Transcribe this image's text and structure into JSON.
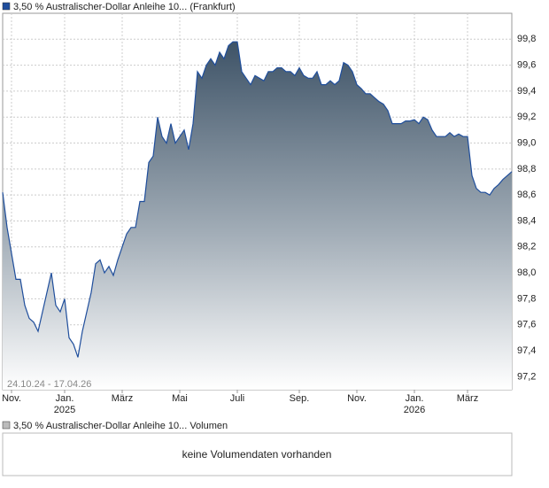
{
  "chart_data": {
    "type": "area",
    "title": "3,50 % Australischer-Dollar Anleihe 10... (Frankfurt)",
    "date_range": "24.10.24 - 17.04.26",
    "color": "#1f4e9c",
    "grid": true,
    "values": [
      98.62,
      98.35,
      98.15,
      97.95,
      97.95,
      97.75,
      97.65,
      97.62,
      97.55,
      97.7,
      97.85,
      98.0,
      97.75,
      97.7,
      97.8,
      97.5,
      97.45,
      97.35,
      97.55,
      97.7,
      97.85,
      98.07,
      98.1,
      98.0,
      98.05,
      97.98,
      98.1,
      98.2,
      98.3,
      98.35,
      98.35,
      98.55,
      98.55,
      98.85,
      98.9,
      99.2,
      99.05,
      99.0,
      99.15,
      99.0,
      99.05,
      99.1,
      98.95,
      99.15,
      99.55,
      99.5,
      99.6,
      99.65,
      99.6,
      99.7,
      99.65,
      99.75,
      99.78,
      99.78,
      99.55,
      99.5,
      99.45,
      99.52,
      99.5,
      99.48,
      99.55,
      99.55,
      99.58,
      99.58,
      99.55,
      99.55,
      99.52,
      99.58,
      99.52,
      99.5,
      99.5,
      99.55,
      99.45,
      99.45,
      99.48,
      99.45,
      99.48,
      99.62,
      99.6,
      99.55,
      99.45,
      99.42,
      99.38,
      99.38,
      99.35,
      99.32,
      99.3,
      99.25,
      99.15,
      99.15,
      99.15,
      99.17,
      99.17,
      99.18,
      99.15,
      99.2,
      99.18,
      99.1,
      99.05,
      99.05,
      99.05,
      99.08,
      99.05,
      99.07,
      99.05,
      99.05,
      98.75,
      98.65,
      98.62,
      98.62,
      98.6,
      98.65,
      98.68,
      98.72,
      98.75,
      98.78
    ],
    "ylim": [
      97.1,
      100.0
    ],
    "yticks": [
      {
        "value": 97.2,
        "label": "97,2"
      },
      {
        "value": 97.4,
        "label": "97,4"
      },
      {
        "value": 97.6,
        "label": "97,6"
      },
      {
        "value": 97.8,
        "label": "97,8"
      },
      {
        "value": 98.0,
        "label": "98,0"
      },
      {
        "value": 98.2,
        "label": "98,2"
      },
      {
        "value": 98.4,
        "label": "98,4"
      },
      {
        "value": 98.6,
        "label": "98,6"
      },
      {
        "value": 98.8,
        "label": "98,8"
      },
      {
        "value": 99.0,
        "label": "99,0"
      },
      {
        "value": 99.2,
        "label": "99,2"
      },
      {
        "value": 99.4,
        "label": "99,4"
      },
      {
        "value": 99.6,
        "label": "99,6"
      },
      {
        "value": 99.8,
        "label": "99,8"
      }
    ],
    "xlim": [
      0,
      115
    ],
    "xticks": [
      {
        "value": 2,
        "label": "Nov."
      },
      {
        "value": 14,
        "label": "Jan."
      },
      {
        "value": 27,
        "label": "März"
      },
      {
        "value": 40,
        "label": "Mai"
      },
      {
        "value": 53,
        "label": "Juli"
      },
      {
        "value": 67,
        "label": "Sep."
      },
      {
        "value": 80,
        "label": "Nov."
      },
      {
        "value": 93,
        "label": "Jan."
      },
      {
        "value": 105,
        "label": "März"
      }
    ],
    "x_year_labels": [
      {
        "value": 14,
        "label": "2025"
      },
      {
        "value": 93,
        "label": "2026"
      }
    ]
  },
  "volume": {
    "title": "3,50 % Australischer-Dollar Anleihe 10... Volumen",
    "message": "keine Volumendaten vorhanden"
  }
}
